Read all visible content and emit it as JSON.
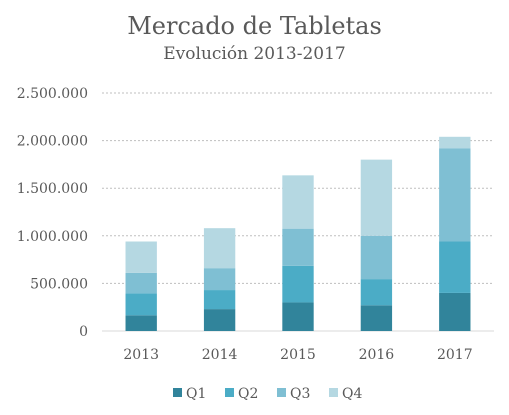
{
  "chart_data": {
    "type": "bar",
    "stacked": true,
    "title": "Mercado de Tabletas",
    "subtitle": "Evolución 2013-2017",
    "categories": [
      "2013",
      "2014",
      "2015",
      "2016",
      "2017"
    ],
    "series": [
      {
        "name": "Q1",
        "color": "#31849B",
        "values": [
          165000,
          230000,
          300000,
          270000,
          400000
        ]
      },
      {
        "name": "Q2",
        "color": "#4BACC6",
        "values": [
          230000,
          200000,
          385000,
          275000,
          540000
        ]
      },
      {
        "name": "Q3",
        "color": "#7FBFD3",
        "values": [
          215000,
          230000,
          390000,
          455000,
          980000
        ]
      },
      {
        "name": "Q4",
        "color": "#B5D8E2",
        "values": [
          330000,
          420000,
          560000,
          800000,
          120000
        ]
      }
    ],
    "y_ticks": [
      "0",
      "500.000",
      "1.000.000",
      "1.500.000",
      "2.000.000",
      "2.500.000"
    ],
    "ylim": [
      0,
      2500000
    ],
    "grid": true,
    "legend_position": "bottom"
  }
}
